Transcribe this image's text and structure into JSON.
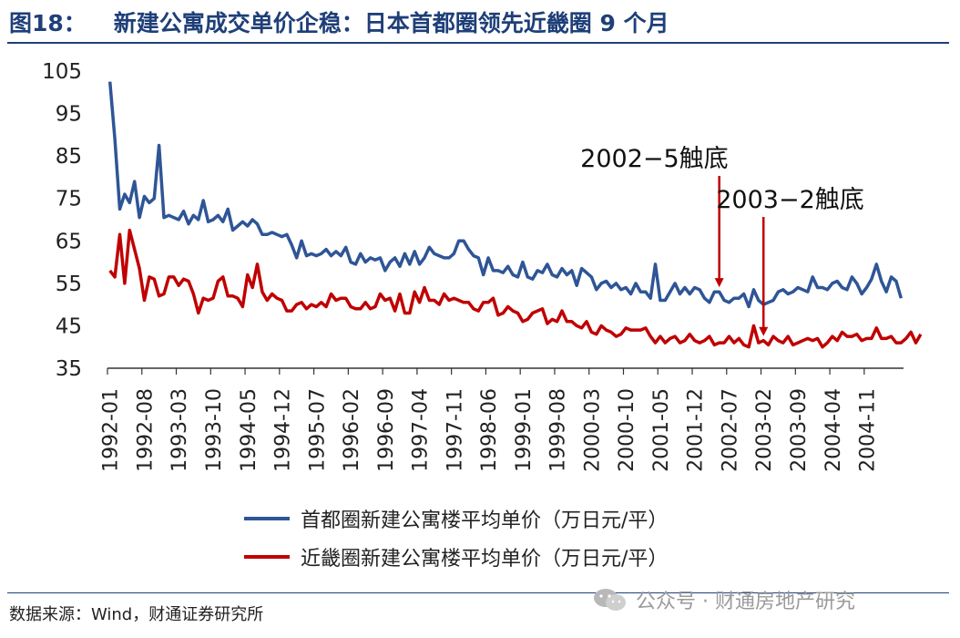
{
  "figure": {
    "label": "图18：",
    "title": "新建公寓成交单价企稳：日本首都圈领先近畿圈 9 个月"
  },
  "source": "数据来源：Wind，财通证券研究所",
  "watermark": "公众号 · 财通房地产研究",
  "colors": {
    "title": "#1f3f78",
    "series1": "#2e5596",
    "series2": "#c00000"
  },
  "chart_data": {
    "type": "line",
    "title": "新建公寓成交单价企稳：日本首都圈领先近畿圈 9 个月",
    "xlabel": "",
    "ylabel": "",
    "ylim": [
      35,
      105
    ],
    "yticks": [
      35,
      45,
      55,
      65,
      75,
      85,
      95,
      105
    ],
    "x_start": "1992-01",
    "x_step_months": 1,
    "xtick_labels": [
      "1992-01",
      "1992-08",
      "1993-03",
      "1993-10",
      "1994-05",
      "1994-12",
      "1995-07",
      "1996-02",
      "1996-09",
      "1997-04",
      "1997-11",
      "1998-06",
      "1999-01",
      "1999-08",
      "2000-03",
      "2000-10",
      "2001-05",
      "2001-12",
      "2002-07",
      "2003-02",
      "2003-09",
      "2004-04",
      "2004-11"
    ],
    "legend_position": "bottom",
    "series": [
      {
        "name": "首都圈新建公寓楼平均单价（万日元/平）",
        "color": "#2e5596",
        "values": [
          102.5,
          89,
          72.5,
          76,
          74,
          79,
          70.5,
          75.5,
          74,
          75,
          87.5,
          70.5,
          71,
          70.5,
          70,
          72,
          69,
          71,
          70,
          74.5,
          69.5,
          70,
          71,
          69.5,
          72.5,
          67.5,
          68.5,
          69.5,
          68.5,
          70,
          69,
          66.5,
          66.5,
          67,
          66.5,
          66,
          66.5,
          64,
          61,
          65,
          61.5,
          62,
          61.5,
          62,
          63,
          61.5,
          62.5,
          61.5,
          63.5,
          60,
          59.5,
          62,
          60,
          61,
          60.5,
          61,
          58,
          60,
          61,
          59,
          62,
          59.5,
          62.5,
          59.5,
          61,
          63.5,
          62,
          61.5,
          61,
          61,
          62,
          65,
          65,
          63,
          61.5,
          61,
          57,
          61,
          58,
          58,
          57.5,
          59,
          57,
          56.5,
          60,
          56.5,
          56,
          58,
          57.5,
          59.5,
          57,
          56.5,
          58.5,
          57,
          58,
          54.5,
          58.5,
          57.5,
          56.5,
          53.5,
          55,
          55.5,
          54,
          55,
          53.5,
          54,
          52.5,
          55,
          53,
          53,
          51.5,
          59.5,
          51,
          51,
          53,
          55,
          52.5,
          54,
          52.5,
          54,
          53.5,
          51.5,
          50.5,
          53,
          53,
          51,
          50.5,
          51.5,
          51.5,
          52.5,
          49.5,
          53.5,
          51,
          50,
          50.5,
          51,
          53,
          53.5,
          52.5,
          53,
          54,
          53.5,
          53,
          56.5,
          54,
          54,
          53.5,
          55,
          55.5,
          54,
          53.5,
          56.5,
          55,
          52.5,
          54,
          56,
          59.5,
          55.5,
          53,
          56.5,
          55.5,
          51.5
        ]
      },
      {
        "name": "近畿圈新建公寓楼平均单价（万日元/平）",
        "color": "#c00000",
        "values": [
          58,
          56.5,
          66.5,
          55,
          67.5,
          63,
          58.5,
          51,
          56.5,
          56,
          52,
          52.5,
          56.5,
          56.5,
          54.5,
          56,
          55.5,
          52.5,
          48,
          51.5,
          51,
          51.5,
          55.5,
          56.5,
          52,
          52,
          51.5,
          49.5,
          57,
          54,
          59.5,
          53,
          51,
          52.5,
          51.5,
          51,
          48.5,
          48.5,
          50,
          50.5,
          49,
          50,
          49.5,
          50.5,
          49.5,
          52.5,
          51,
          51.5,
          51.5,
          49.5,
          49,
          49,
          50.5,
          49,
          49.5,
          52.5,
          51,
          51.5,
          48.5,
          52.5,
          48,
          48,
          53,
          50.5,
          54,
          51,
          51,
          50,
          52.5,
          51,
          51.5,
          51,
          50.5,
          50.5,
          49,
          48.5,
          50.5,
          50.5,
          51.5,
          47.5,
          48,
          49.5,
          48.5,
          48,
          46,
          46.5,
          48,
          48.5,
          49,
          45.5,
          46.5,
          46,
          48.5,
          46,
          46,
          45,
          44.5,
          46,
          43.5,
          43,
          45,
          44,
          43.5,
          42.5,
          43,
          44.5,
          44,
          44,
          44,
          44.5,
          42.5,
          41,
          42.5,
          41,
          42,
          42.5,
          41,
          41.5,
          43,
          41.5,
          41,
          41.5,
          42.5,
          40.5,
          41,
          41,
          42.5,
          41,
          42,
          40.5,
          40,
          45,
          41,
          41.5,
          40.5,
          42.5,
          41.5,
          41,
          42.5,
          40.5,
          41,
          41.5,
          42,
          41.5,
          42,
          40,
          41,
          42.5,
          41.5,
          43.5,
          42.5,
          42.5,
          43,
          41.5,
          42,
          42,
          44.5,
          42,
          42,
          42.5,
          41,
          41,
          42,
          43.5,
          41,
          43
        ]
      }
    ],
    "annotations": [
      {
        "text": "2002−5触底",
        "x": "2002-05",
        "series": 0
      },
      {
        "text": "2003−2触底",
        "x": "2003-02",
        "series": 1
      }
    ]
  }
}
